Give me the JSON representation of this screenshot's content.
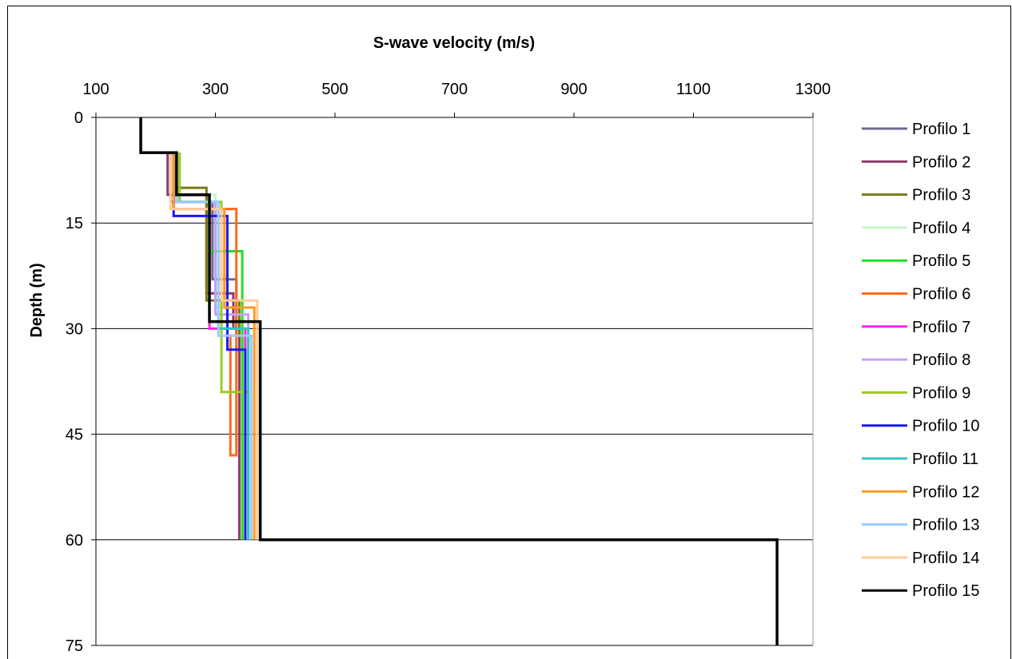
{
  "chart_data": {
    "type": "line",
    "title": "",
    "xlabel": "S-wave velocity (m/s)",
    "ylabel": "Depth (m)",
    "xlim": [
      100,
      1300
    ],
    "ylim": [
      0,
      75
    ],
    "y_inverted": true,
    "x_axis_position": "top",
    "x_ticks": [
      "100",
      "300",
      "500",
      "700",
      "900",
      "1100",
      "1300"
    ],
    "y_ticks": [
      "0",
      "15",
      "30",
      "45",
      "60",
      "75"
    ],
    "grid": "horizontal",
    "legend_position": "right",
    "series": [
      {
        "name": "Profilo 1",
        "color": "#6b6b95",
        "points": [
          [
            225,
            5
          ],
          [
            225,
            12
          ],
          [
            295,
            12
          ],
          [
            295,
            23
          ],
          [
            335,
            23
          ],
          [
            335,
            31
          ],
          [
            345,
            31
          ],
          [
            345,
            60
          ]
        ]
      },
      {
        "name": "Profilo 2",
        "color": "#8b3a6b",
        "points": [
          [
            220,
            5
          ],
          [
            220,
            11
          ],
          [
            285,
            11
          ],
          [
            285,
            25
          ],
          [
            330,
            25
          ],
          [
            330,
            30
          ],
          [
            340,
            30
          ],
          [
            340,
            60
          ]
        ]
      },
      {
        "name": "Profilo 3",
        "color": "#7a7a10",
        "points": [
          [
            235,
            5
          ],
          [
            235,
            10
          ],
          [
            285,
            10
          ],
          [
            285,
            26
          ],
          [
            340,
            26
          ],
          [
            340,
            31
          ],
          [
            345,
            31
          ],
          [
            345,
            60
          ]
        ]
      },
      {
        "name": "Profilo 4",
        "color": "#c8f5c8",
        "points": [
          [
            230,
            5
          ],
          [
            230,
            11
          ],
          [
            300,
            11
          ],
          [
            300,
            27
          ],
          [
            345,
            27
          ],
          [
            345,
            31
          ],
          [
            350,
            31
          ],
          [
            350,
            60
          ]
        ]
      },
      {
        "name": "Profilo 5",
        "color": "#22e022",
        "points": [
          [
            240,
            5
          ],
          [
            240,
            12
          ],
          [
            290,
            12
          ],
          [
            290,
            19
          ],
          [
            345,
            19
          ],
          [
            345,
            31
          ],
          [
            345,
            60
          ]
        ]
      },
      {
        "name": "Profilo 6",
        "color": "#ff6a1a",
        "points": [
          [
            230,
            5
          ],
          [
            230,
            13
          ],
          [
            335,
            13
          ],
          [
            335,
            48
          ],
          [
            325,
            48
          ],
          [
            325,
            31
          ],
          [
            355,
            31
          ],
          [
            355,
            60
          ]
        ]
      },
      {
        "name": "Profilo 7",
        "color": "#ff22ee",
        "points": [
          [
            235,
            5
          ],
          [
            235,
            12
          ],
          [
            290,
            12
          ],
          [
            290,
            30
          ],
          [
            350,
            30
          ],
          [
            350,
            60
          ]
        ]
      },
      {
        "name": "Profilo 8",
        "color": "#c8a0f0",
        "points": [
          [
            230,
            5
          ],
          [
            230,
            12
          ],
          [
            300,
            12
          ],
          [
            300,
            28
          ],
          [
            355,
            28
          ],
          [
            355,
            60
          ]
        ]
      },
      {
        "name": "Profilo 9",
        "color": "#99cc22",
        "points": [
          [
            240,
            5
          ],
          [
            240,
            12
          ],
          [
            310,
            12
          ],
          [
            310,
            39
          ],
          [
            355,
            39
          ],
          [
            355,
            60
          ]
        ]
      },
      {
        "name": "Profilo 10",
        "color": "#1a1aee",
        "points": [
          [
            230,
            5
          ],
          [
            230,
            14
          ],
          [
            320,
            14
          ],
          [
            320,
            33
          ],
          [
            350,
            33
          ],
          [
            350,
            60
          ]
        ]
      },
      {
        "name": "Profilo 11",
        "color": "#33c4c4",
        "points": [
          [
            235,
            5
          ],
          [
            235,
            12
          ],
          [
            305,
            12
          ],
          [
            305,
            30
          ],
          [
            355,
            30
          ],
          [
            355,
            60
          ]
        ]
      },
      {
        "name": "Profilo 12",
        "color": "#ff9922",
        "points": [
          [
            230,
            5
          ],
          [
            230,
            13
          ],
          [
            315,
            13
          ],
          [
            315,
            27
          ],
          [
            365,
            27
          ],
          [
            365,
            60
          ]
        ]
      },
      {
        "name": "Profilo 13",
        "color": "#99ccff",
        "points": [
          [
            235,
            5
          ],
          [
            235,
            12
          ],
          [
            305,
            12
          ],
          [
            305,
            31
          ],
          [
            360,
            31
          ],
          [
            360,
            60
          ]
        ]
      },
      {
        "name": "Profilo 14",
        "color": "#ffcc99",
        "points": [
          [
            225,
            5
          ],
          [
            225,
            13
          ],
          [
            310,
            13
          ],
          [
            310,
            26
          ],
          [
            370,
            26
          ],
          [
            370,
            60
          ]
        ]
      },
      {
        "name": "Profilo 15",
        "color": "#000000",
        "points": [
          [
            175,
            0
          ],
          [
            175,
            5
          ],
          [
            235,
            5
          ],
          [
            235,
            11
          ],
          [
            290,
            11
          ],
          [
            290,
            29
          ],
          [
            375,
            29
          ],
          [
            375,
            60
          ],
          [
            1240,
            60
          ],
          [
            1240,
            75
          ]
        ]
      }
    ]
  }
}
